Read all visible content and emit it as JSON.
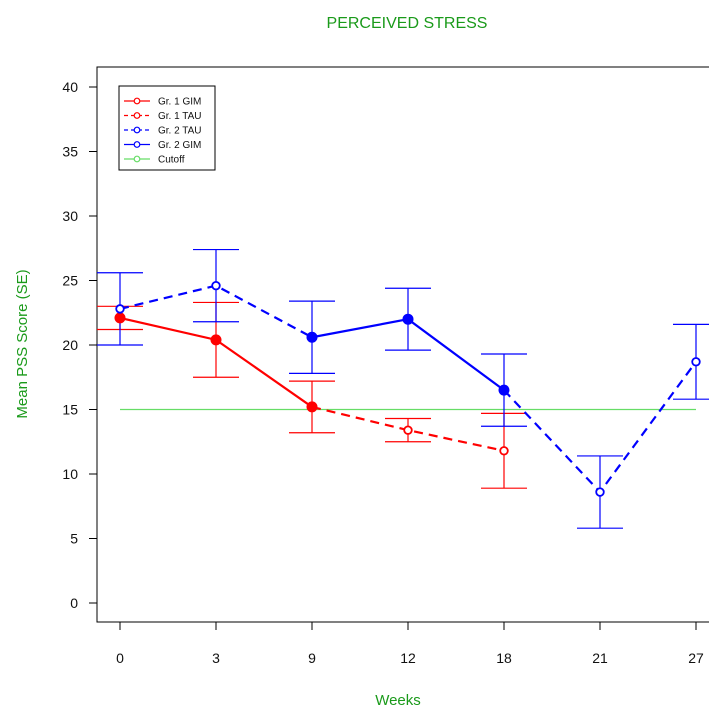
{
  "chart_data": {
    "type": "line",
    "title": "PERCEIVED STRESS",
    "xlabel": "Weeks",
    "ylabel": "Mean PSS Score (SE)",
    "categories": [
      "0",
      "3",
      "9",
      "12",
      "18",
      "21",
      "27"
    ],
    "ylim": [
      0,
      40
    ],
    "yticks": [
      0,
      5,
      10,
      15,
      20,
      25,
      30,
      35,
      40
    ],
    "grid": false,
    "legend_position": "top-left",
    "series": [
      {
        "name": "Gr. 1 GIM",
        "color": "#ff0000",
        "segments": [
          {
            "dash": "solid",
            "points": [
              [
                0,
                22.1
              ],
              [
                1,
                20.4
              ],
              [
                2,
                15.2
              ]
            ]
          }
        ],
        "points": [
          {
            "x": 0,
            "y": 22.1,
            "lo": 21.2,
            "hi": 23.0,
            "marker": "filled"
          },
          {
            "x": 1,
            "y": 20.4,
            "lo": 17.5,
            "hi": 23.3,
            "marker": "filled"
          },
          {
            "x": 2,
            "y": 15.2,
            "lo": 13.2,
            "hi": 17.2,
            "marker": "filled"
          }
        ]
      },
      {
        "name": "Gr. 1 TAU",
        "color": "#ff0000",
        "segments": [
          {
            "dash": "dashed",
            "points": [
              [
                2,
                15.2
              ],
              [
                3,
                13.4
              ],
              [
                4,
                11.8
              ]
            ]
          }
        ],
        "points": [
          {
            "x": 3,
            "y": 13.4,
            "lo": 12.5,
            "hi": 14.3,
            "marker": "open"
          },
          {
            "x": 4,
            "y": 11.8,
            "lo": 8.9,
            "hi": 14.7,
            "marker": "open"
          }
        ]
      },
      {
        "name": "Gr. 2 TAU",
        "color": "#0000ff",
        "segments": [
          {
            "dash": "dashed",
            "points": [
              [
                0,
                22.8
              ],
              [
                1,
                24.6
              ],
              [
                2,
                20.6
              ]
            ]
          },
          {
            "dash": "dashed",
            "points": [
              [
                4,
                16.5
              ],
              [
                5,
                8.6
              ],
              [
                6,
                18.7
              ]
            ]
          }
        ],
        "points": [
          {
            "x": 0,
            "y": 22.8,
            "lo": 20.0,
            "hi": 25.6,
            "marker": "open"
          },
          {
            "x": 1,
            "y": 24.6,
            "lo": 21.8,
            "hi": 27.4,
            "marker": "open"
          },
          {
            "x": 5,
            "y": 8.6,
            "lo": 5.8,
            "hi": 11.4,
            "marker": "open"
          },
          {
            "x": 6,
            "y": 18.7,
            "lo": 15.8,
            "hi": 21.6,
            "marker": "open"
          }
        ]
      },
      {
        "name": "Gr. 2 GIM",
        "color": "#0000ff",
        "segments": [
          {
            "dash": "solid",
            "points": [
              [
                2,
                20.6
              ],
              [
                3,
                22.0
              ],
              [
                4,
                16.5
              ]
            ]
          }
        ],
        "points": [
          {
            "x": 2,
            "y": 20.6,
            "lo": 17.8,
            "hi": 23.4,
            "marker": "filled"
          },
          {
            "x": 3,
            "y": 22.0,
            "lo": 19.6,
            "hi": 24.4,
            "marker": "filled"
          },
          {
            "x": 4,
            "y": 16.5,
            "lo": 13.7,
            "hi": 19.3,
            "marker": "filled"
          }
        ]
      },
      {
        "name": "Cutoff",
        "color": "#66dd66",
        "type": "hline",
        "value": 15,
        "x_range": [
          0,
          6
        ]
      }
    ],
    "legend": [
      {
        "label": "Gr. 1 GIM",
        "color": "#ff0000",
        "dash": "solid"
      },
      {
        "label": "Gr. 1 TAU",
        "color": "#ff0000",
        "dash": "dashed"
      },
      {
        "label": "Gr. 2 TAU",
        "color": "#0000ff",
        "dash": "dashed"
      },
      {
        "label": "Gr. 2 GIM",
        "color": "#0000ff",
        "dash": "solid"
      },
      {
        "label": "Cutoff",
        "color": "#66dd66",
        "dash": "solid"
      }
    ]
  }
}
